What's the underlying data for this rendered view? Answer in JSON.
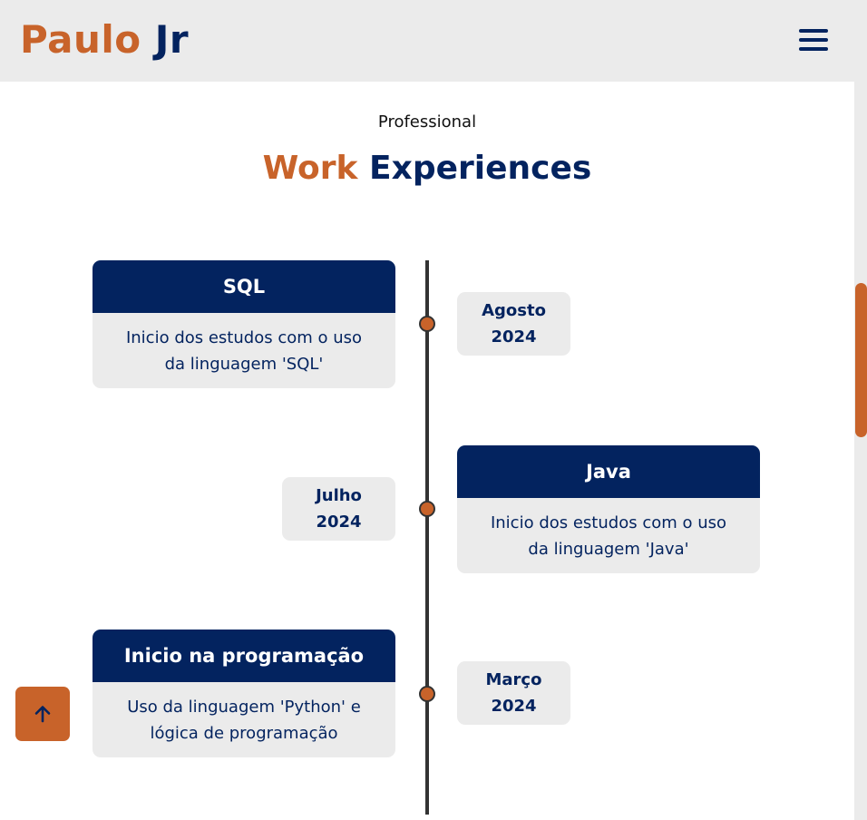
{
  "header": {
    "logo_first": "Paulo",
    "logo_last": "Jr",
    "menu_icon": "hamburger-menu-icon"
  },
  "section": {
    "subtitle": "Professional",
    "title_accent": "Work",
    "title_main": "Experiences"
  },
  "timeline": [
    {
      "title": "SQL",
      "description": "Inicio dos estudos com o uso da linguagem 'SQL'",
      "date_month": "Agosto",
      "date_year": "2024"
    },
    {
      "title": "Java",
      "description": "Inicio dos estudos com o uso da linguagem 'Java'",
      "date_month": "Julho",
      "date_year": "2024"
    },
    {
      "title": "Inicio na programação",
      "description": "Uso da linguagem 'Python' e lógica de programação",
      "date_month": "Março",
      "date_year": "2024"
    }
  ],
  "scroll_top": {
    "icon": "arrow-up-icon"
  },
  "colors": {
    "accent": "#c8632a",
    "brand": "#03235f",
    "surface": "#ebebeb"
  }
}
